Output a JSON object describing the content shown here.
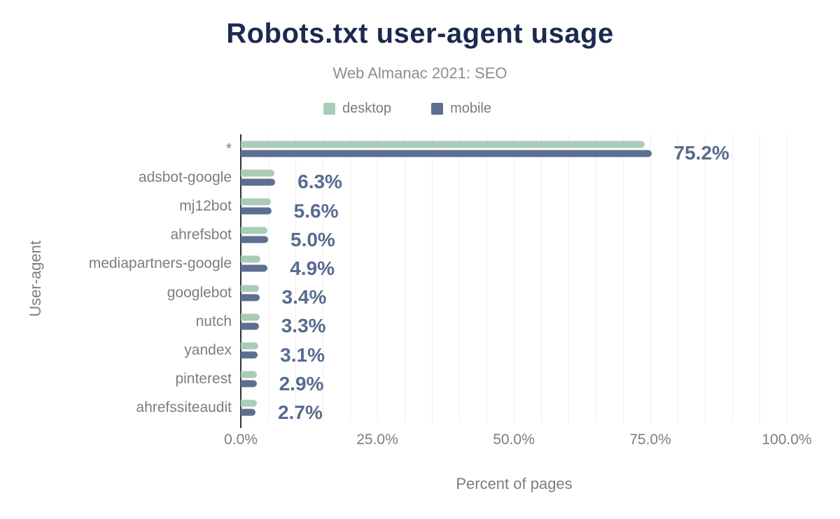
{
  "chart": {
    "title": "Robots.txt user-agent usage",
    "subtitle": "Web Almanac 2021: SEO",
    "xlabel": "Percent of pages",
    "ylabel": "User-agent"
  },
  "chart_data": {
    "type": "bar",
    "orientation": "horizontal",
    "title": "Robots.txt user-agent usage",
    "subtitle": "Web Almanac 2021: SEO",
    "xlabel": "Percent of pages",
    "ylabel": "User-agent",
    "xlim": [
      0,
      100
    ],
    "grid": true,
    "grid_step_percent": 5,
    "legend_position": "top",
    "categories": [
      "*",
      "adsbot-google",
      "mj12bot",
      "ahrefsbot",
      "mediapartners-google",
      "googlebot",
      "nutch",
      "yandex",
      "pinterest",
      "ahrefssiteaudit"
    ],
    "series": [
      {
        "name": "desktop",
        "color": "#a9ccb8",
        "values": [
          74.0,
          6.2,
          5.5,
          4.9,
          3.6,
          3.3,
          3.4,
          3.2,
          3.0,
          3.0
        ]
      },
      {
        "name": "mobile",
        "color": "#5c6f92",
        "values": [
          75.2,
          6.3,
          5.6,
          5.0,
          4.9,
          3.4,
          3.3,
          3.1,
          2.9,
          2.7
        ]
      }
    ],
    "value_labels_series": "mobile",
    "value_labels": [
      "75.2%",
      "6.3%",
      "5.6%",
      "5.0%",
      "4.9%",
      "3.4%",
      "3.3%",
      "3.1%",
      "2.9%",
      "2.7%"
    ],
    "x_ticks": [
      "0.0%",
      "25.0%",
      "50.0%",
      "75.0%",
      "100.0%"
    ]
  },
  "colors": {
    "title": "#1b2a4e",
    "desktop": "#a9ccb8",
    "mobile": "#5c6f92",
    "value_label": "#576b90",
    "axis_text": "#7d7d7d",
    "subtitle_text": "#8d8d8d",
    "legend_text": "#7b7b7b",
    "gridline": "#ededed",
    "axis_line": "#333333",
    "background": "#ffffff"
  }
}
